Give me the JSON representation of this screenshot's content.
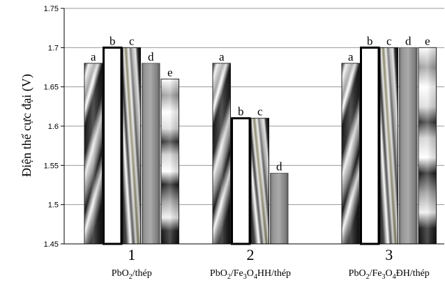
{
  "chart_data": {
    "type": "bar",
    "ylabel": "Điện thế cực đại (V)",
    "ylim": [
      1.45,
      1.75
    ],
    "yticks": [
      "1.45",
      "1.5",
      "1.55",
      "1.6",
      "1.65",
      "1.7",
      "1.75"
    ],
    "grid": true,
    "groups": [
      {
        "number": "1",
        "label_parts": [
          "PbO",
          "2",
          "/thép"
        ],
        "bars": [
          {
            "label": "a",
            "value": 1.68
          },
          {
            "label": "b",
            "value": 1.7
          },
          {
            "label": "c",
            "value": 1.7
          },
          {
            "label": "d",
            "value": 1.68
          },
          {
            "label": "e",
            "value": 1.66
          }
        ]
      },
      {
        "number": "2",
        "label_parts": [
          "PbO",
          "2",
          "/Fe",
          "3",
          "O",
          "4",
          "HH/thép"
        ],
        "bars": [
          {
            "label": "a",
            "value": 1.68
          },
          {
            "label": "b",
            "value": 1.61
          },
          {
            "label": "c",
            "value": 1.61
          },
          {
            "label": "d",
            "value": 1.54
          }
        ]
      },
      {
        "number": "3",
        "label_parts": [
          "PbO",
          "2",
          "/Fe",
          "3",
          "O",
          "4",
          "ĐH/thép"
        ],
        "bars": [
          {
            "label": "a",
            "value": 1.68
          },
          {
            "label": "b",
            "value": 1.7
          },
          {
            "label": "c",
            "value": 1.7
          },
          {
            "label": "d",
            "value": 1.7
          },
          {
            "label": "e",
            "value": 1.7
          }
        ]
      }
    ]
  }
}
